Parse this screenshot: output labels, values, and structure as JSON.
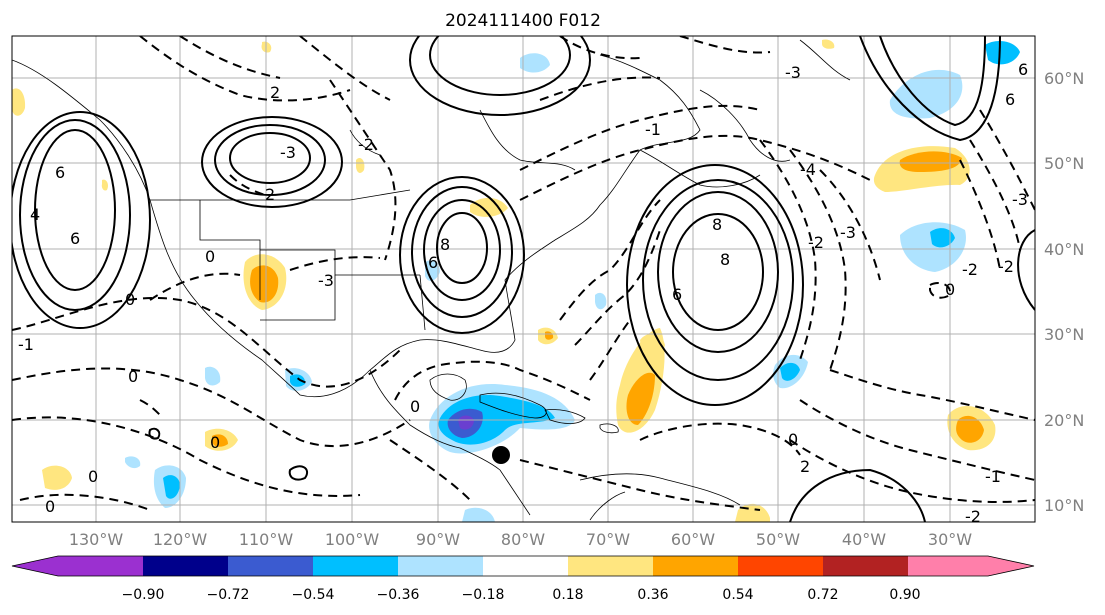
{
  "title": "2024111400 F012",
  "lon_labels": [
    "130°W",
    "120°W",
    "110°W",
    "100°W",
    "90°W",
    "80°W",
    "70°W",
    "60°W",
    "50°W",
    "40°W",
    "30°W"
  ],
  "lat_labels": [
    "60°N",
    "50°N",
    "40°N",
    "30°N",
    "20°N",
    "10°N"
  ],
  "colorbar": {
    "ticks": [
      "−0.90",
      "−0.72",
      "−0.54",
      "−0.36",
      "−0.18",
      "0.18",
      "0.36",
      "0.54",
      "0.72",
      "0.90"
    ],
    "colors": [
      "#9b30d0",
      "#00008b",
      "#3b5bd0",
      "#00bfff",
      "#aee3ff",
      "#ffffff",
      "#ffe680",
      "#ffa500",
      "#ff4500",
      "#b22222",
      "#ff7faa"
    ]
  },
  "contour_labels": [
    "3",
    "2",
    "2",
    "6",
    "4",
    "6",
    "0",
    "-1",
    "-2",
    "-3",
    "-2",
    "0",
    "2",
    "-3",
    "-3",
    "2",
    "8",
    "6",
    "8",
    "-3",
    "-4",
    "-2",
    "0",
    "2",
    "4",
    "6",
    "8",
    "-3",
    "-2",
    "-1",
    "0",
    "0",
    "-1",
    "-2",
    "-3",
    "6",
    "-1",
    "0",
    "-1",
    "-2",
    "0",
    "0",
    "0",
    "-1",
    "-1",
    "-1",
    "-2"
  ],
  "marker_label": "storm-center"
}
